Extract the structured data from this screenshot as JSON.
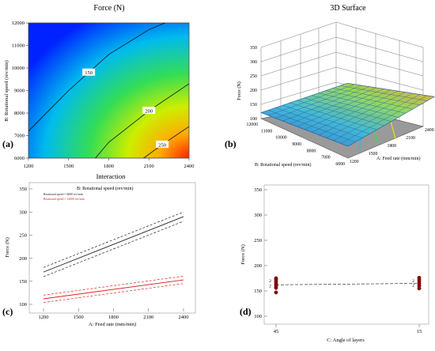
{
  "panel_letters": {
    "a": "(a)",
    "b": "(b)",
    "c": "(c)",
    "d": "(d)"
  },
  "colors": {
    "contour_low": "#0033ff",
    "contour_mid": "#22cc44",
    "contour_high": "#ff3300",
    "series_black": "#222222",
    "series_red": "#e02020",
    "design_points": "#8b0000"
  },
  "chart_data": [
    {
      "panel": "a",
      "type": "heatmap",
      "subtype": "contour",
      "title": "Force (N)",
      "xlabel": "",
      "ylabel": "B: Rotational speed (rev/min)",
      "xlim": [
        1200,
        2400
      ],
      "ylim": [
        6000,
        12000
      ],
      "xticks": [
        "1200",
        "1500",
        "1800",
        "2100",
        "2400"
      ],
      "yticks": [
        "6000",
        "7000",
        "8000",
        "9000",
        "10000",
        "11000",
        "12000"
      ],
      "contours": [
        {
          "level": "150",
          "points": [
            [
              1200,
              7200
            ],
            [
              1500,
              9000
            ],
            [
              1800,
              10600
            ],
            [
              2100,
              11700
            ],
            [
              2220,
              12000
            ]
          ]
        },
        {
          "level": "200",
          "points": [
            [
              1700,
              6000
            ],
            [
              1800,
              6700
            ],
            [
              2100,
              8100
            ],
            [
              2400,
              9300
            ]
          ]
        },
        {
          "level": "250",
          "points": [
            [
              2060,
              6000
            ],
            [
              2200,
              6600
            ],
            [
              2400,
              7400
            ]
          ]
        }
      ],
      "grid": false
    },
    {
      "panel": "b",
      "type": "area",
      "subtype": "3d-surface",
      "title": "3D Surface",
      "xlabel": "A: Feed rate (mm/min)",
      "ylabel": "B: Rotational speed (rev/min)",
      "zlabel": "Force (N)",
      "x_ticks": [
        "1200",
        "1500",
        "1800",
        "2100",
        "2400"
      ],
      "y_ticks": [
        "6000",
        "7000",
        "8000",
        "9000",
        "10000",
        "11000",
        "12000"
      ],
      "z_ticks": [
        "100",
        "150",
        "200",
        "250",
        "300",
        "350"
      ],
      "z_range": [
        100,
        350
      ],
      "surface_corners": [
        {
          "feed": 1200,
          "speed": 12000,
          "force": 125
        },
        {
          "feed": 2400,
          "speed": 12000,
          "force": 180
        },
        {
          "feed": 1200,
          "speed": 6000,
          "force": 150
        },
        {
          "feed": 2400,
          "speed": 6000,
          "force": 290
        }
      ]
    },
    {
      "panel": "c",
      "type": "line",
      "title": "Interaction",
      "legend_title": "B: Rotational speed (rev/min)",
      "xlabel": "A: Feed rate (mm/min)",
      "ylabel": "Force (N)",
      "xlim": [
        1200,
        2400
      ],
      "ylim": [
        100,
        350
      ],
      "xticks": [
        "1200",
        "1500",
        "1800",
        "2100",
        "2400"
      ],
      "yticks": [
        "100",
        "150",
        "200",
        "250",
        "300",
        "350"
      ],
      "legend_position": "top-left",
      "series": [
        {
          "name": "Rotational speed = 6000 rev/min",
          "x": [
            1200,
            2400
          ],
          "values": [
            170,
            290
          ],
          "band": [
            10,
            10
          ]
        },
        {
          "name": "Rotational speed = 12000 rev/min",
          "x": [
            1200,
            2400
          ],
          "values": [
            112,
            153
          ],
          "band": [
            8,
            8
          ]
        }
      ]
    },
    {
      "panel": "d",
      "type": "scatter",
      "title": "",
      "xlabel": "C: Angle of layers",
      "ylabel": "Force (N)",
      "ylim": [
        100,
        350
      ],
      "categories": [
        "45",
        "15"
      ],
      "yticks": [
        "100",
        "150",
        "200",
        "250",
        "300",
        "350"
      ],
      "points": [
        {
          "x": "45",
          "y": 175
        },
        {
          "x": "45",
          "y": 172
        },
        {
          "x": "45",
          "y": 168
        },
        {
          "x": "45",
          "y": 164
        },
        {
          "x": "45",
          "y": 160
        },
        {
          "x": "45",
          "y": 156
        },
        {
          "x": "45",
          "y": 147
        },
        {
          "x": "15",
          "y": 176
        },
        {
          "x": "15",
          "y": 172
        },
        {
          "x": "15",
          "y": 168
        },
        {
          "x": "15",
          "y": 164
        },
        {
          "x": "15",
          "y": 160
        },
        {
          "x": "15",
          "y": 155
        }
      ],
      "point_labels": [
        "2",
        "2",
        "2",
        "2"
      ],
      "fit_line": {
        "x": [
          "45",
          "15"
        ],
        "values": [
          162,
          165
        ]
      }
    }
  ]
}
